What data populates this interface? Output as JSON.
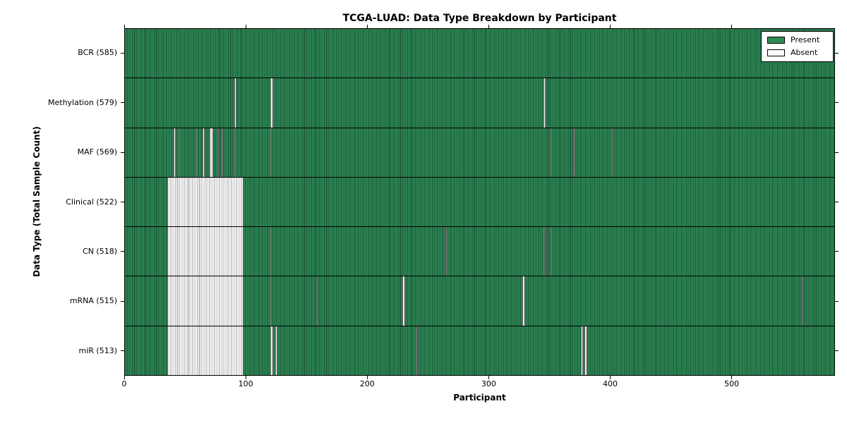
{
  "chart_data": {
    "type": "heatmap",
    "title": "TCGA-LUAD: Data Type Breakdown by Participant",
    "xlabel": "Participant",
    "ylabel": "Data Type (Total Sample Count)",
    "n_participants": 585,
    "xlim": [
      0,
      585
    ],
    "x_ticks": [
      0,
      100,
      200,
      300,
      400,
      500
    ],
    "grid": false,
    "legend": {
      "position": "upper right",
      "entries": [
        {
          "label": "Present",
          "color": "#2e8b57"
        },
        {
          "label": "Absent",
          "color": "#ffffff"
        }
      ]
    },
    "colors": {
      "present_fill": "#2e8b57",
      "present_edge": "#17492d",
      "absent_fill": "#ffffff",
      "absent_edge": "#9b9b9b",
      "axis": "#000000"
    },
    "rows": [
      {
        "data_type": "BCR",
        "label": "BCR (585)",
        "present_count": 585,
        "absent_ranges": []
      },
      {
        "data_type": "Methylation",
        "label": "Methylation (579)",
        "present_count": 579,
        "absent_ranges": [
          [
            90,
            91
          ],
          [
            120,
            121
          ],
          [
            345,
            346
          ]
        ]
      },
      {
        "data_type": "MAF",
        "label": "MAF (569)",
        "present_count": 569,
        "absent_ranges": [
          [
            40,
            41
          ],
          [
            44,
            44
          ],
          [
            59,
            59
          ],
          [
            64,
            65
          ],
          [
            70,
            72
          ],
          [
            76,
            76
          ],
          [
            80,
            80
          ],
          [
            90,
            90
          ],
          [
            120,
            120
          ],
          [
            351,
            351
          ],
          [
            370,
            370
          ],
          [
            401,
            401
          ]
        ]
      },
      {
        "data_type": "Clinical",
        "label": "Clinical (522)",
        "present_count": 522,
        "absent_ranges": [
          [
            35,
            97
          ]
        ]
      },
      {
        "data_type": "CN",
        "label": "CN (518)",
        "present_count": 518,
        "absent_ranges": [
          [
            35,
            97
          ],
          [
            120,
            120
          ],
          [
            265,
            265
          ],
          [
            345,
            345
          ],
          [
            351,
            351
          ]
        ]
      },
      {
        "data_type": "mRNA",
        "label": "mRNA (515)",
        "present_count": 515,
        "absent_ranges": [
          [
            35,
            97
          ],
          [
            120,
            120
          ],
          [
            158,
            158
          ],
          [
            229,
            230
          ],
          [
            328,
            329
          ],
          [
            558,
            558
          ]
        ]
      },
      {
        "data_type": "miR",
        "label": "miR (513)",
        "present_count": 513,
        "absent_ranges": [
          [
            35,
            97
          ],
          [
            120,
            121
          ],
          [
            124,
            125
          ],
          [
            240,
            240
          ],
          [
            376,
            377
          ],
          [
            379,
            380
          ]
        ]
      }
    ]
  }
}
